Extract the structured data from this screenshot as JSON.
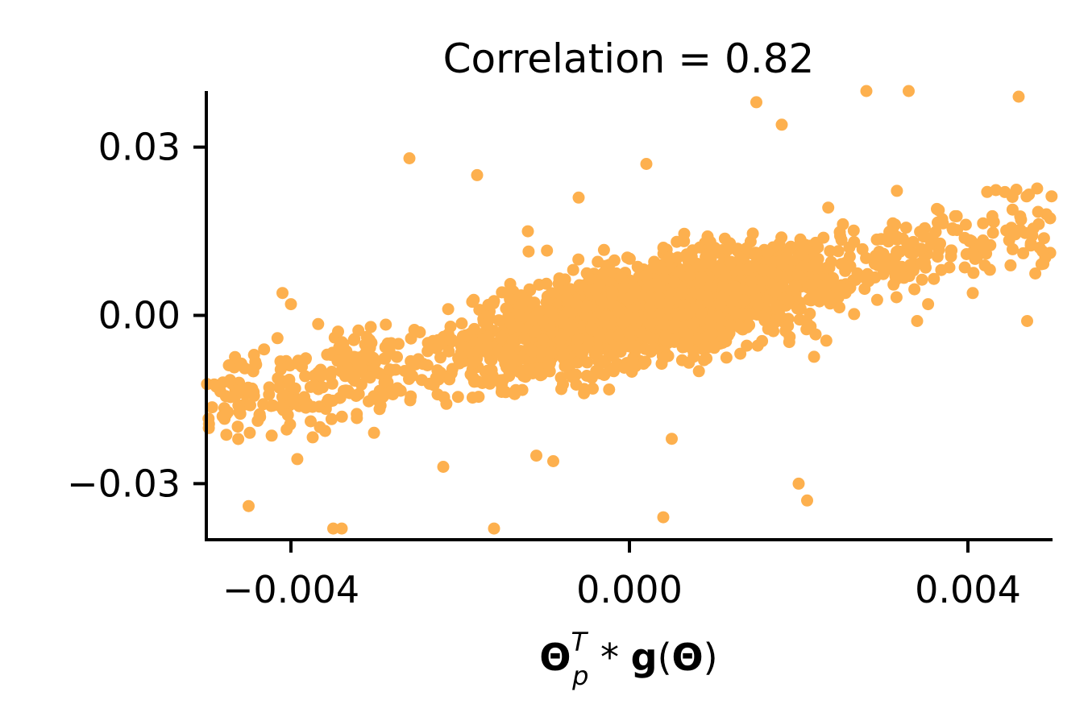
{
  "chart_data": {
    "type": "scatter",
    "title": "Correlation = 0.82",
    "xlabel": {
      "theta": "Θ",
      "subscript": "p",
      "superscript": "T",
      "operator": " * ",
      "g": "g",
      "open_paren": "(",
      "close_paren": ")"
    },
    "ylabel": "",
    "xlim": [
      -0.005,
      0.005
    ],
    "ylim": [
      -0.04,
      0.04
    ],
    "xticks": [
      -0.004,
      0.0,
      0.004
    ],
    "xtick_labels": [
      "−0.004",
      "0.000",
      "0.004"
    ],
    "yticks": [
      -0.03,
      0.0,
      0.03
    ],
    "ytick_labels": [
      "−0.03",
      "0.00",
      "0.03"
    ],
    "correlation": 0.82,
    "n_points": 2600,
    "color": "#fdb04e",
    "grid": false,
    "legend": "none",
    "outliers": [
      {
        "x": -0.0026,
        "y": 0.028
      },
      {
        "x": -0.0018,
        "y": 0.025
      },
      {
        "x": 0.0002,
        "y": 0.027
      },
      {
        "x": 0.0015,
        "y": 0.038
      },
      {
        "x": 0.0018,
        "y": 0.034
      },
      {
        "x": 0.0028,
        "y": 0.04
      },
      {
        "x": 0.0033,
        "y": 0.04
      },
      {
        "x": 0.0046,
        "y": 0.039
      },
      {
        "x": -0.0045,
        "y": -0.034
      },
      {
        "x": -0.0035,
        "y": -0.038
      },
      {
        "x": -0.0034,
        "y": -0.038
      },
      {
        "x": -0.0016,
        "y": -0.038
      },
      {
        "x": 0.0004,
        "y": -0.036
      },
      {
        "x": 0.002,
        "y": -0.03
      },
      {
        "x": 0.0021,
        "y": -0.033
      },
      {
        "x": -0.0011,
        "y": -0.025
      },
      {
        "x": -0.0009,
        "y": -0.026
      },
      {
        "x": -0.0022,
        "y": -0.027
      },
      {
        "x": 0.0005,
        "y": -0.022
      },
      {
        "x": -0.0041,
        "y": 0.004
      },
      {
        "x": -0.004,
        "y": 0.002
      },
      {
        "x": 0.0047,
        "y": -0.001
      },
      {
        "x": 0.0034,
        "y": -0.001
      },
      {
        "x": -0.0006,
        "y": 0.021
      },
      {
        "x": -0.0012,
        "y": 0.015
      }
    ]
  }
}
